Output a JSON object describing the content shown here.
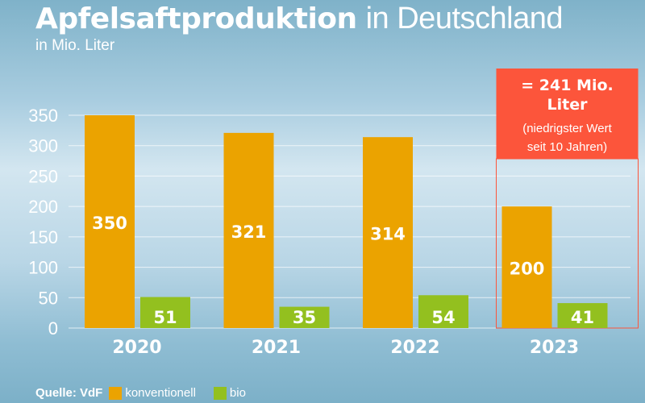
{
  "chart_data": {
    "type": "bar",
    "title_bold": "Apfelsaftproduktion",
    "title_rest": "in Deutschland",
    "subtitle": "in Mio. Liter",
    "categories": [
      "2020",
      "2021",
      "2022",
      "2023"
    ],
    "series": [
      {
        "name": "konventionell",
        "color": "#eba300",
        "values": [
          350,
          321,
          314,
          200
        ]
      },
      {
        "name": "bio",
        "color": "#93c01f",
        "values": [
          51,
          35,
          54,
          41
        ]
      }
    ],
    "ylim": [
      0,
      350
    ],
    "yticks": [
      0,
      50,
      100,
      150,
      200,
      250,
      300,
      350
    ],
    "grid": true,
    "annotation": {
      "category": "2023",
      "line1": "= 241 Mio.",
      "line2": "Liter",
      "line3": "(niedrigster Wert",
      "line4": "seit 10 Jahren)",
      "color": "#fc553b"
    },
    "source": "Quelle: VdF",
    "legend_position": "bottom-left"
  }
}
